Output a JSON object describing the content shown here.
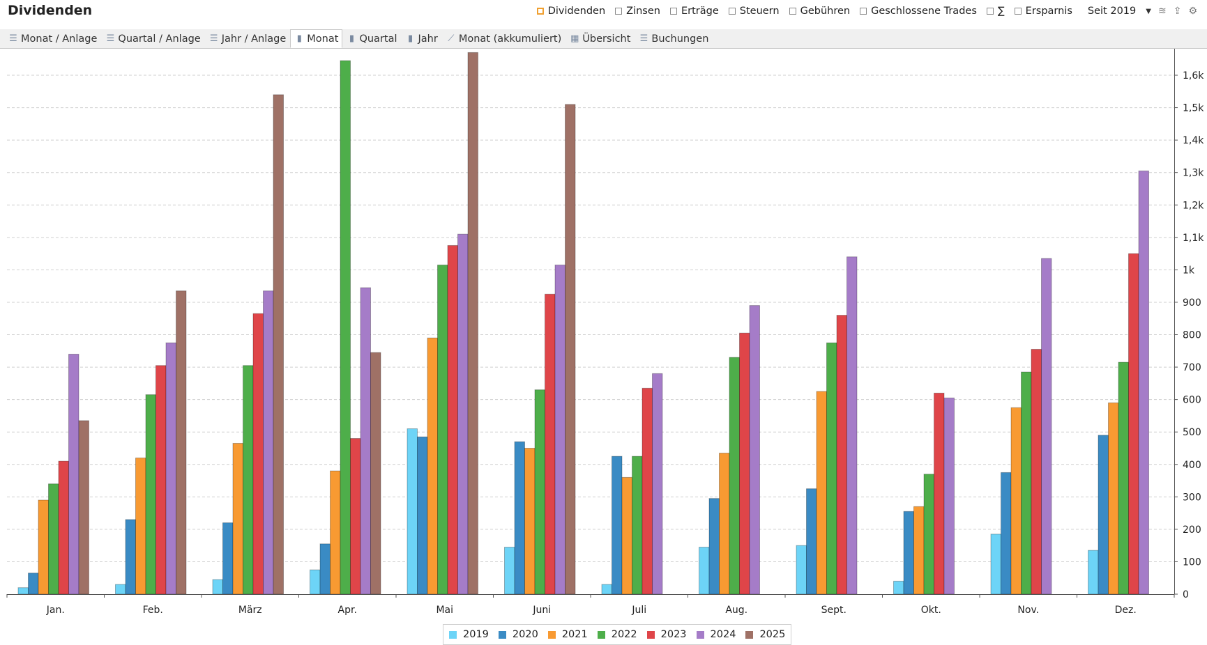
{
  "header": {
    "title": "Dividenden",
    "filters": [
      {
        "label": "Dividenden",
        "checked": true
      },
      {
        "label": "Zinsen",
        "checked": false
      },
      {
        "label": "Erträge",
        "checked": false
      },
      {
        "label": "Steuern",
        "checked": false
      },
      {
        "label": "Gebühren",
        "checked": false
      },
      {
        "label": "Geschlossene Trades",
        "checked": false
      },
      {
        "label": "∑",
        "checked": false
      },
      {
        "label": "Ersparnis",
        "checked": false
      }
    ],
    "period": "Seit 2019",
    "icons": [
      "dropdown-arrow-icon",
      "layers-icon",
      "export-icon",
      "gear-icon"
    ]
  },
  "tabs": [
    {
      "label": "Monat / Anlage",
      "icon": "list-icon",
      "active": false
    },
    {
      "label": "Quartal / Anlage",
      "icon": "list-icon",
      "active": false
    },
    {
      "label": "Jahr / Anlage",
      "icon": "list-icon",
      "active": false
    },
    {
      "label": "Monat",
      "icon": "bar-chart-icon",
      "active": true
    },
    {
      "label": "Quartal",
      "icon": "bar-chart-icon",
      "active": false
    },
    {
      "label": "Jahr",
      "icon": "bar-chart-icon",
      "active": false
    },
    {
      "label": "Monat (akkumuliert)",
      "icon": "line-chart-icon",
      "active": false
    },
    {
      "label": "Übersicht",
      "icon": "calendar-icon",
      "active": false
    },
    {
      "label": "Buchungen",
      "icon": "list-icon",
      "active": false
    }
  ],
  "chart_data": {
    "type": "bar",
    "categories": [
      "Jan.",
      "Feb.",
      "März",
      "Apr.",
      "Mai",
      "Juni",
      "Juli",
      "Aug.",
      "Sept.",
      "Okt.",
      "Nov.",
      "Dez."
    ],
    "series": [
      {
        "name": "2019",
        "color": "#6dd4f7",
        "values": [
          20,
          30,
          45,
          75,
          510,
          145,
          30,
          145,
          150,
          40,
          185,
          135
        ]
      },
      {
        "name": "2020",
        "color": "#3a8bc4",
        "values": [
          65,
          230,
          220,
          155,
          485,
          470,
          425,
          295,
          325,
          255,
          375,
          490
        ]
      },
      {
        "name": "2021",
        "color": "#f89a32",
        "values": [
          290,
          420,
          465,
          380,
          790,
          450,
          360,
          435,
          625,
          270,
          575,
          590
        ]
      },
      {
        "name": "2022",
        "color": "#4eae4a",
        "values": [
          340,
          615,
          705,
          1645,
          1015,
          630,
          425,
          730,
          775,
          370,
          685,
          715
        ]
      },
      {
        "name": "2023",
        "color": "#df4549",
        "values": [
          410,
          705,
          865,
          480,
          1075,
          925,
          635,
          805,
          860,
          620,
          755,
          1050
        ]
      },
      {
        "name": "2024",
        "color": "#a57cc8",
        "values": [
          740,
          775,
          935,
          945,
          1110,
          1015,
          680,
          890,
          1040,
          605,
          1035,
          1305
        ]
      },
      {
        "name": "2025",
        "color": "#9f7166",
        "values": [
          535,
          935,
          1540,
          745,
          1670,
          1510,
          null,
          null,
          null,
          null,
          null,
          null
        ]
      }
    ],
    "yticks": [
      "0",
      "100",
      "200",
      "300",
      "400",
      "500",
      "600",
      "700",
      "800",
      "900",
      "1k",
      "1,1k",
      "1,2k",
      "1,3k",
      "1,4k",
      "1,5k",
      "1,6k"
    ],
    "ylim": [
      0,
      1700
    ],
    "grid": true,
    "legend": "bottom"
  }
}
